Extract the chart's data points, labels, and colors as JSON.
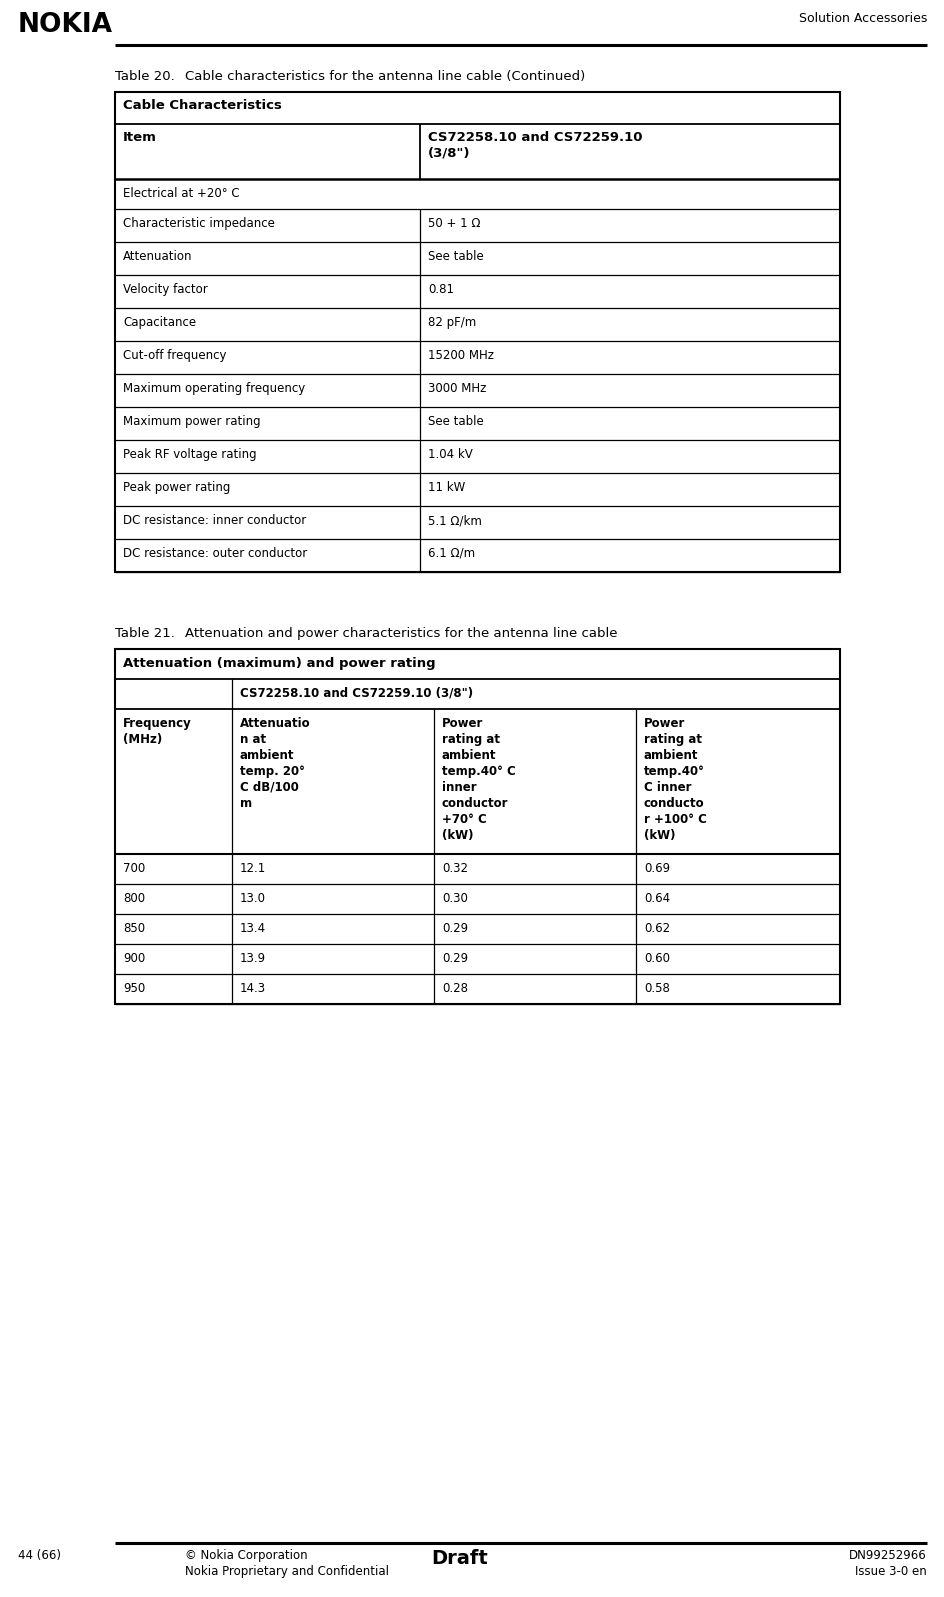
{
  "page_title": "Solution Accessories",
  "footer_left": "44 (66)",
  "footer_center_bold": "Draft",
  "footer_copyright": "© Nokia Corporation",
  "footer_confidential": "Nokia Proprietary and Confidential",
  "footer_right_top": "DN99252966",
  "footer_right_bottom": "Issue 3-0 en",
  "table20_caption_label": "Table 20.",
  "table20_caption_text": "Cable characteristics for the antenna line cable (Continued)",
  "table20_header1": "Cable Characteristics",
  "table20_col2_header": "CS72258.10 and CS72259.10\n(3/8\")",
  "table20_rows": [
    [
      "Electrical at +20° C",
      ""
    ],
    [
      "Characteristic impedance",
      "50 + 1 Ω"
    ],
    [
      "Attenuation",
      "See table"
    ],
    [
      "Velocity factor",
      "0.81"
    ],
    [
      "Capacitance",
      "82 pF/m"
    ],
    [
      "Cut-off frequency",
      "15200 MHz"
    ],
    [
      "Maximum operating frequency",
      "3000 MHz"
    ],
    [
      "Maximum power rating",
      "See table"
    ],
    [
      "Peak RF voltage rating",
      "1.04 kV"
    ],
    [
      "Peak power rating",
      "11 kW"
    ],
    [
      "DC resistance: inner conductor",
      "5.1 Ω/km"
    ],
    [
      "DC resistance: outer conductor",
      "6.1 Ω/m"
    ]
  ],
  "table21_caption_label": "Table 21.",
  "table21_caption_text": "Attenuation and power characteristics for the antenna line cable",
  "table21_header1": "Attenuation (maximum) and power rating",
  "table21_header2": "CS72258.10 and CS72259.10 (3/8\")",
  "table21_col_headers": [
    "Frequency\n(MHz)",
    "Attenuatio\nn at\nambient\ntemp. 20°\nC dB/100\nm",
    "Power\nrating at\nambient\ntemp.40° C\ninner\nconductor\n+70° C\n(kW)",
    "Power\nrating at\nambient\ntemp.40°\nC inner\nconducto\nr +100° C\n(kW)"
  ],
  "table21_data": [
    [
      "700",
      "12.1",
      "0.32",
      "0.69"
    ],
    [
      "800",
      "13.0",
      "0.30",
      "0.64"
    ],
    [
      "850",
      "13.4",
      "0.29",
      "0.62"
    ],
    [
      "900",
      "13.9",
      "0.29",
      "0.60"
    ],
    [
      "950",
      "14.3",
      "0.28",
      "0.58"
    ]
  ],
  "bg_color": "#ffffff"
}
